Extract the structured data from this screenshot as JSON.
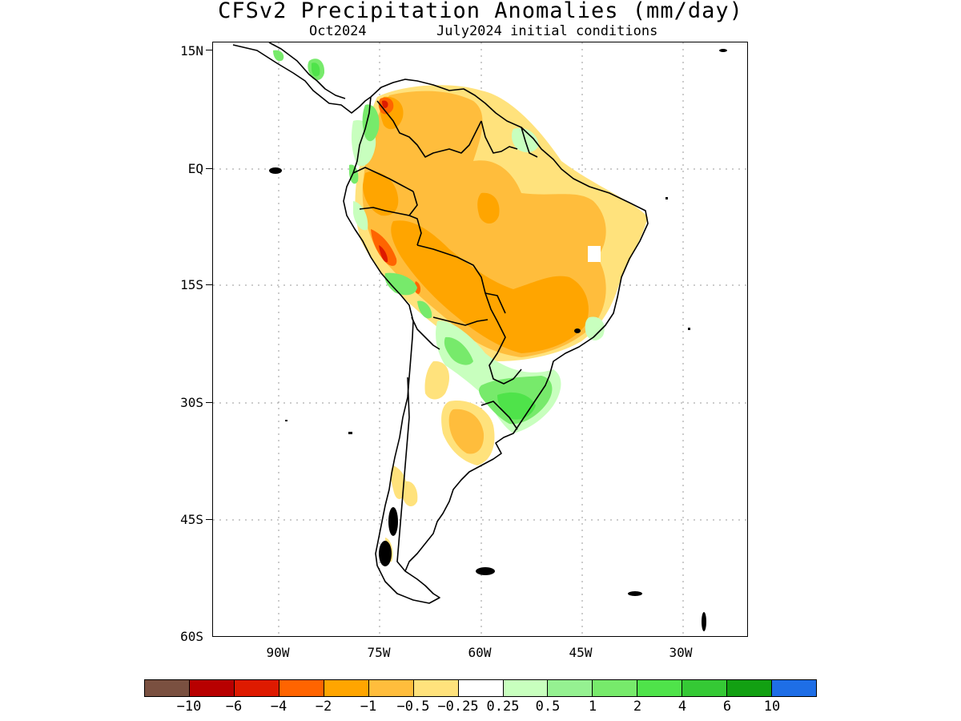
{
  "title": "CFSv2 Precipitation Anomalies (mm/day)",
  "subtitle_left": "Oct2024",
  "subtitle_right": "July2024 initial conditions",
  "lat_labels": [
    "15N",
    "EQ",
    "15S",
    "30S",
    "45S",
    "60S"
  ],
  "lon_labels": [
    "90W",
    "75W",
    "60W",
    "45W",
    "30W"
  ],
  "colorbar": {
    "colors": [
      "#7a5040",
      "#b80000",
      "#de1a00",
      "#ff6400",
      "#ffa500",
      "#ffbd3c",
      "#ffe27c",
      "#ffffff",
      "#c8ffbe",
      "#95f191",
      "#77ea6b",
      "#4fe34a",
      "#35c935",
      "#12a012",
      "#1e6ee6"
    ],
    "labels": [
      "-10",
      "-6",
      "-4",
      "-2",
      "-1",
      "-0.5",
      "-0.25",
      "0.25",
      "0.5",
      "1",
      "2",
      "4",
      "6",
      "10"
    ]
  },
  "chart_data": {
    "type": "heatmap",
    "title": "CFSv2 Precipitation Anomalies (mm/day)",
    "valid_month": "Oct2024",
    "initial_conditions": "July2024 initial conditions",
    "lon_range": [
      -100,
      -20
    ],
    "lat_range": [
      -60,
      15
    ],
    "units": "mm/day",
    "levels": [
      -10,
      -6,
      -4,
      -2,
      -1,
      -0.5,
      -0.25,
      0.25,
      0.5,
      1,
      2,
      4,
      6,
      10
    ]
  }
}
